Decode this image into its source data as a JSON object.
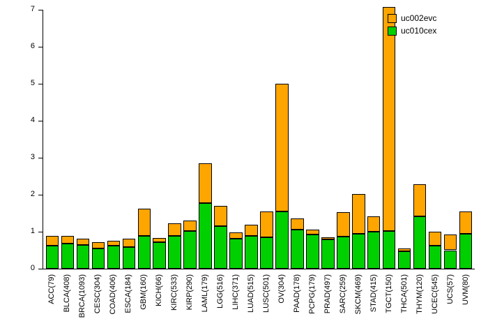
{
  "chart_data": {
    "type": "bar",
    "stacked": true,
    "title": "",
    "xlabel": "",
    "ylabel": "",
    "background": "#FFFFFF",
    "axis_color": "#000000",
    "bar_border_color": "#000000",
    "ylim": [
      0,
      7
    ],
    "yticks": [
      0,
      1,
      2,
      3,
      4,
      5,
      6,
      7
    ],
    "grid": false,
    "categories": [
      "ACC(79)",
      "BLCA(408)",
      "BRCA(1093)",
      "CESC(304)",
      "COAD(406)",
      "ESCA(184)",
      "GBM(160)",
      "KICH(66)",
      "KIRC(533)",
      "KIRP(290)",
      "LAML(179)",
      "LGG(516)",
      "LIHC(371)",
      "LUAD(515)",
      "LUSC(501)",
      "OV(304)",
      "PAAD(178)",
      "PCPG(179)",
      "PRAD(497)",
      "SARC(259)",
      "SKCM(469)",
      "STAD(415)",
      "TGCT(150)",
      "THCA(501)",
      "THYM(120)",
      "UCEC(545)",
      "UCS(57)",
      "UVM(80)"
    ],
    "series": [
      {
        "name": "uc010cex",
        "color": "#00D000",
        "values": [
          0.62,
          0.68,
          0.65,
          0.55,
          0.62,
          0.58,
          0.88,
          0.72,
          0.88,
          1.02,
          1.78,
          1.15,
          0.82,
          0.88,
          0.85,
          1.55,
          1.05,
          0.92,
          0.8,
          0.87,
          0.95,
          1.0,
          1.02,
          0.48,
          1.42,
          0.62,
          0.5,
          0.95
        ]
      },
      {
        "name": "uc002evc",
        "color": "#FFA500",
        "values": [
          0.26,
          0.2,
          0.17,
          0.17,
          0.13,
          0.24,
          0.74,
          0.11,
          0.34,
          0.28,
          1.07,
          0.55,
          0.16,
          0.3,
          0.7,
          3.45,
          0.3,
          0.13,
          0.05,
          0.65,
          1.07,
          0.42,
          6.06,
          0.07,
          0.86,
          0.38,
          0.42,
          0.6
        ]
      }
    ],
    "legend": {
      "position": "top-right",
      "entries": [
        {
          "label": "uc002evc",
          "color": "#FFA500"
        },
        {
          "label": "uc010cex",
          "color": "#00D000"
        }
      ]
    }
  }
}
